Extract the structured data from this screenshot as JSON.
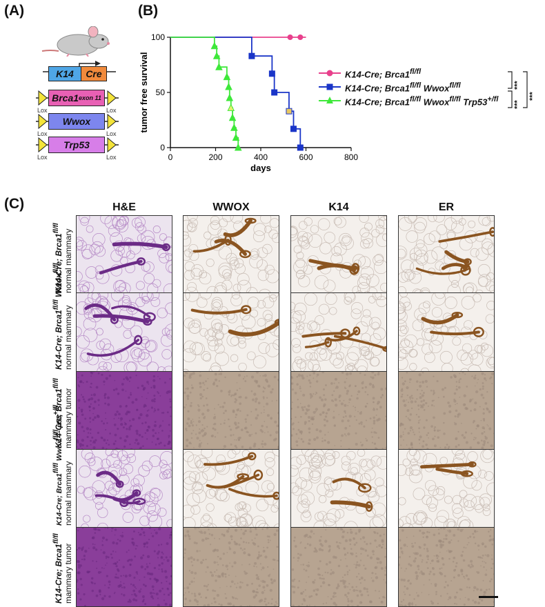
{
  "panels": {
    "a": {
      "letter": "(A)",
      "genes": [
        {
          "label": "K14",
          "color": "#4fa6e6"
        },
        {
          "label": "Cre",
          "color": "#f08a3c"
        },
        {
          "label": "Brca1",
          "sup": "exon 11",
          "color": "#e860b4"
        },
        {
          "label": "Wwox",
          "color": "#7d86ee"
        },
        {
          "label": "Trp53",
          "color": "#d77ee8"
        }
      ],
      "lox_label": "Lox",
      "lox_color": "#f4e43a"
    },
    "b": {
      "letter": "(B)",
      "legend": [
        {
          "text": "K14-Cre; Brca1",
          "sup": "fl/fl"
        },
        {
          "text": "K14-Cre; Brca1",
          "sup": "fl/fl",
          "text2": " Wwox",
          "sup2": "fl/fl"
        },
        {
          "text": "K14-Cre; Brca1",
          "sup": "fl/fl",
          "text2": " Wwox",
          "sup2": "fl/fl",
          "text3": " Trp53",
          "sup3": "+/fl"
        }
      ],
      "significance": [
        "***",
        "***",
        "***"
      ]
    },
    "c": {
      "letter": "(C)",
      "columns": [
        "H&E",
        "WWOX",
        "K14",
        "ER"
      ],
      "rows": [
        {
          "genotype": "K14-Cre; Brca1",
          "sup": "fl/fl",
          "tissue": "normal mammary"
        },
        {
          "genotype": "K14-Cre; Brca1",
          "sup": "fl/fl",
          "genotype2": " Wwox",
          "sup2": "fl/fl",
          "tissue": "normal mammary"
        },
        {
          "genotype": "K14-Cre; Brca1",
          "sup": "fl/fl",
          "tissue": "mammary tumor"
        },
        {
          "genotype": "K14-Cre; Brca1",
          "sup": "fl/fl",
          "genotype2": " Wwox",
          "sup2": "fl/fl",
          "genotype3": " p53",
          "sup3": "+/fl",
          "tissue": "normal mammary"
        },
        {
          "genotype": "K14-Cre; Brca1",
          "sup": "fl/fl",
          "tissue": "mammary tumor"
        }
      ]
    }
  },
  "chart_data": {
    "type": "line",
    "step": true,
    "xlabel": "days",
    "ylabel": "tumor free survival",
    "xlim": [
      0,
      800
    ],
    "ylim": [
      0,
      100
    ],
    "xticks": [
      0,
      200,
      400,
      600,
      800
    ],
    "yticks": [
      0,
      50,
      100
    ],
    "series": [
      {
        "name": "K14-Cre; Brca1 fl/fl",
        "color": "#e8408c",
        "marker": "circle",
        "steps": [
          [
            0,
            100
          ],
          [
            600,
            100
          ]
        ],
        "points": [
          [
            530,
            100
          ],
          [
            575,
            100
          ]
        ]
      },
      {
        "name": "K14-Cre; Brca1 fl/fl Wwox fl/fl",
        "color": "#1a35c8",
        "marker": "square",
        "steps": [
          [
            0,
            100
          ],
          [
            360,
            100
          ],
          [
            360,
            83
          ],
          [
            450,
            83
          ],
          [
            450,
            67
          ],
          [
            460,
            67
          ],
          [
            460,
            50
          ],
          [
            525,
            50
          ],
          [
            525,
            33
          ],
          [
            545,
            33
          ],
          [
            545,
            17
          ],
          [
            575,
            17
          ],
          [
            575,
            0
          ]
        ],
        "points": [
          [
            360,
            83
          ],
          [
            450,
            67
          ],
          [
            460,
            50
          ],
          [
            525,
            33
          ],
          [
            545,
            17
          ],
          [
            575,
            0
          ]
        ],
        "censored": [
          [
            525,
            33
          ]
        ]
      },
      {
        "name": "K14-Cre; Brca1 fl/fl Wwox fl/fl Trp53 +/fl",
        "color": "#3ee83a",
        "marker": "triangle",
        "steps": [
          [
            0,
            100
          ],
          [
            195,
            100
          ],
          [
            195,
            92
          ],
          [
            205,
            92
          ],
          [
            205,
            83
          ],
          [
            215,
            83
          ],
          [
            215,
            73
          ],
          [
            250,
            73
          ],
          [
            250,
            64
          ],
          [
            258,
            64
          ],
          [
            258,
            55
          ],
          [
            262,
            55
          ],
          [
            262,
            45
          ],
          [
            268,
            45
          ],
          [
            268,
            36
          ],
          [
            275,
            36
          ],
          [
            275,
            27
          ],
          [
            282,
            27
          ],
          [
            282,
            18
          ],
          [
            290,
            18
          ],
          [
            290,
            9
          ],
          [
            300,
            9
          ],
          [
            300,
            0
          ]
        ],
        "points": [
          [
            195,
            92
          ],
          [
            205,
            83
          ],
          [
            215,
            73
          ],
          [
            250,
            64
          ],
          [
            258,
            55
          ],
          [
            262,
            45
          ],
          [
            268,
            36
          ],
          [
            275,
            27
          ],
          [
            282,
            18
          ],
          [
            290,
            9
          ],
          [
            300,
            0
          ]
        ],
        "censored": [
          [
            268,
            36
          ]
        ]
      }
    ]
  }
}
